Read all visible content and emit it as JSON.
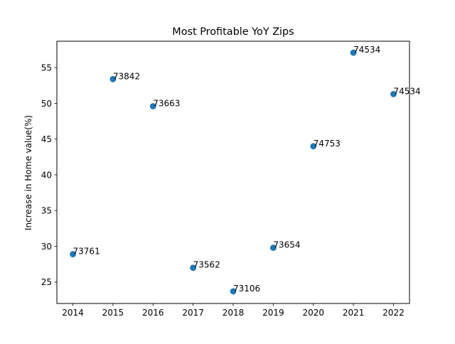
{
  "chart_data": {
    "type": "scatter",
    "title": "Most Profitable YoY Zips",
    "xlabel": "",
    "ylabel": "Increase in Home value(%)",
    "xlim": [
      2013.6,
      2022.4
    ],
    "ylim": [
      22.0,
      58.7
    ],
    "x_ticks": [
      "2014",
      "2015",
      "2016",
      "2017",
      "2018",
      "2019",
      "2020",
      "2021",
      "2022"
    ],
    "y_ticks": [
      "25",
      "30",
      "35",
      "40",
      "45",
      "50",
      "55"
    ],
    "grid": false,
    "marker_color": "#1f77b4",
    "points": [
      {
        "x": 2014,
        "y": 28.9,
        "label": "73761"
      },
      {
        "x": 2015,
        "y": 53.4,
        "label": "73842"
      },
      {
        "x": 2016,
        "y": 49.6,
        "label": "73663"
      },
      {
        "x": 2017,
        "y": 27.0,
        "label": "73562"
      },
      {
        "x": 2018,
        "y": 23.7,
        "label": "73106"
      },
      {
        "x": 2019,
        "y": 29.8,
        "label": "73654"
      },
      {
        "x": 2020,
        "y": 44.0,
        "label": "74753"
      },
      {
        "x": 2021,
        "y": 57.1,
        "label": "74534"
      },
      {
        "x": 2022,
        "y": 51.3,
        "label": "74534"
      }
    ]
  }
}
